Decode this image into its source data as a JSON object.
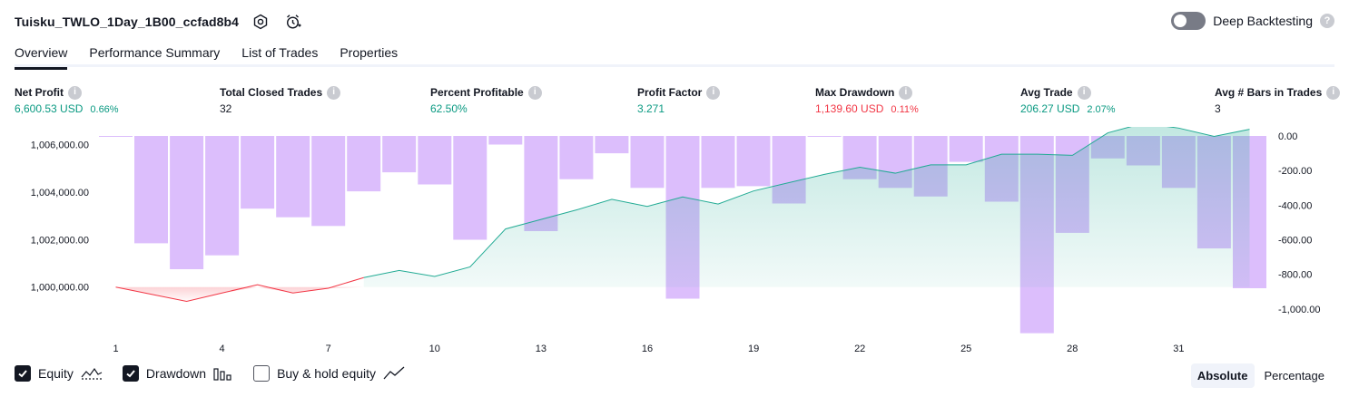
{
  "header": {
    "strategy_name": "Tuisku_TWLO_1Day_1B00_ccfad8b4",
    "icons": [
      "settings-icon",
      "alert-clock-icon"
    ]
  },
  "deep_backtesting": {
    "label": "Deep Backtesting",
    "enabled": false,
    "help": "?"
  },
  "tabs": [
    {
      "label": "Overview",
      "active": true
    },
    {
      "label": "Performance Summary",
      "active": false
    },
    {
      "label": "List of Trades",
      "active": false
    },
    {
      "label": "Properties",
      "active": false
    }
  ],
  "metrics": [
    {
      "label": "Net Profit",
      "value": "6,600.53 USD",
      "sub": "0.66%",
      "color": "#089981"
    },
    {
      "label": "Total Closed Trades",
      "value": "32",
      "sub": "",
      "color": "#131722"
    },
    {
      "label": "Percent Profitable",
      "value": "62.50%",
      "sub": "",
      "color": "#089981"
    },
    {
      "label": "Profit Factor",
      "value": "3.271",
      "sub": "",
      "color": "#089981"
    },
    {
      "label": "Max Drawdown",
      "value": "1,139.60 USD",
      "sub": "0.11%",
      "color": "#f23645"
    },
    {
      "label": "Avg Trade",
      "value": "206.27 USD",
      "sub": "2.07%",
      "color": "#089981"
    },
    {
      "label": "Avg # Bars in Trades",
      "value": "3",
      "sub": "",
      "color": "#131722"
    }
  ],
  "chart_data": {
    "type": "area",
    "x_ticks": [
      "1",
      "4",
      "7",
      "10",
      "13",
      "16",
      "19",
      "22",
      "25",
      "28",
      "31"
    ],
    "x_range": [
      1,
      33
    ],
    "equity": {
      "ylim": [
        998500,
        1006750
      ],
      "y_ticks": [
        "1,000,000.00",
        "1,002,000.00",
        "1,004,000.00",
        "1,006,000.00"
      ],
      "y_tick_values": [
        1000000,
        1002000,
        1004000,
        1006000
      ],
      "values": [
        1000000,
        999700,
        999400,
        999750,
        1000100,
        999750,
        999950,
        1000400,
        1000700,
        1000450,
        1000850,
        1002450,
        1002850,
        1003250,
        1003700,
        1003400,
        1003800,
        1003500,
        1004050,
        1004400,
        1004750,
        1005050,
        1004800,
        1005150,
        1005150,
        1005600,
        1005600,
        1005550,
        1006500,
        1006900,
        1006700,
        1006350,
        1006650
      ],
      "below_start_color": "#f23645",
      "above_start_color": "#089981"
    },
    "drawdown": {
      "ylim": [
        -1100,
        0
      ],
      "y_ticks": [
        "0.00",
        "-200.00",
        "-400.00",
        "-600.00",
        "-800.00",
        "-1,000.00"
      ],
      "y_tick_values": [
        0,
        -200,
        -400,
        -600,
        -800,
        -1000
      ],
      "values": [
        -5,
        -620,
        -770,
        -690,
        -420,
        -470,
        -520,
        -320,
        -210,
        -280,
        -600,
        -50,
        -550,
        -250,
        -100,
        -300,
        -940,
        -300,
        -290,
        -390,
        -5,
        -250,
        -300,
        -350,
        -150,
        -380,
        -1140,
        -560,
        -130,
        -170,
        -300,
        -650,
        -880
      ],
      "color": "#d9b3fb"
    },
    "colors": {
      "equity_line": "#22ab94",
      "equity_fill": "#22ab94",
      "drawdown_fill": "#c99bfa"
    }
  },
  "legend": [
    {
      "label": "Equity",
      "checked": true,
      "icon": "equity-line-icon"
    },
    {
      "label": "Drawdown",
      "checked": true,
      "icon": "drawdown-bars-icon"
    },
    {
      "label": "Buy & hold equity",
      "checked": false,
      "icon": "buy-hold-line-icon"
    }
  ],
  "mode": {
    "options": [
      "Absolute",
      "Percentage"
    ],
    "selected": "Absolute"
  }
}
